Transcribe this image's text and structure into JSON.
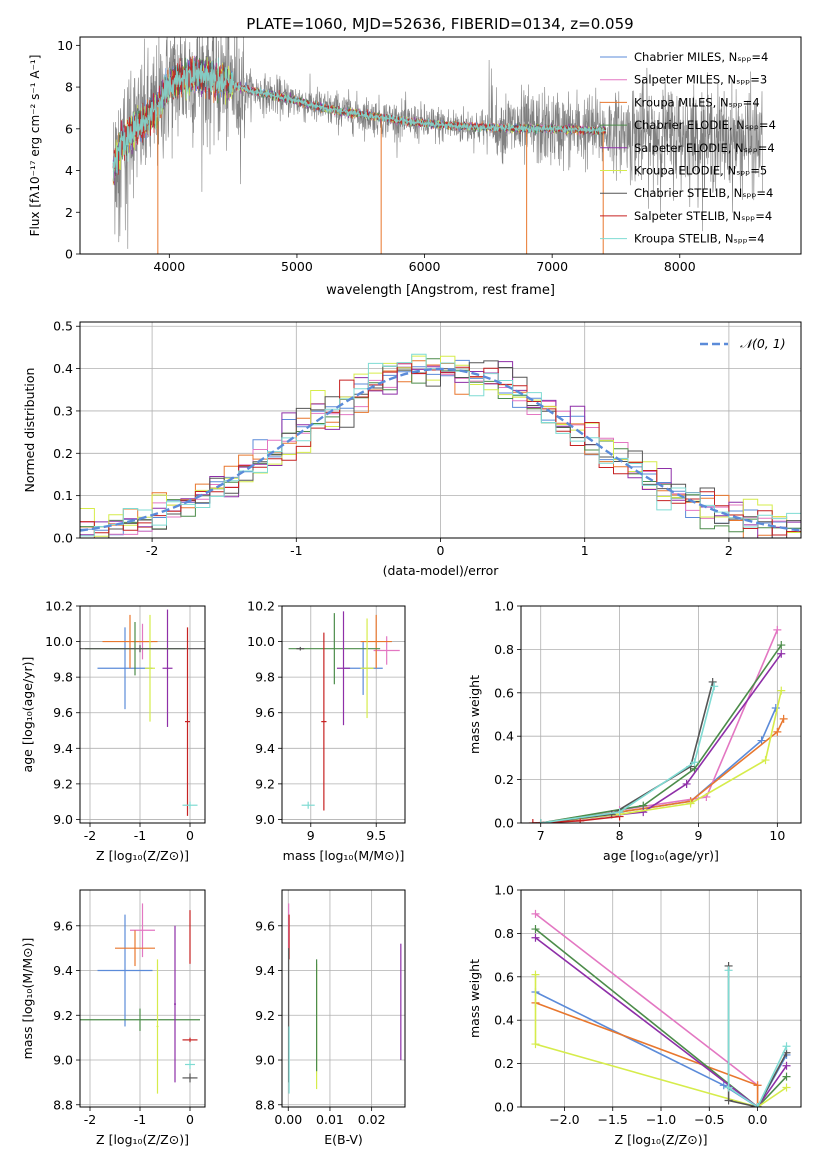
{
  "figure_title": "PLATE=1060, MJD=52636, FIBERID=0134, z=0.059",
  "colors": {
    "chabrier_miles": "#5b8bd9",
    "salpeter_miles": "#e377c2",
    "kroupa_miles": "#e8772e",
    "chabrier_elodie": "#4c8c4a",
    "salpeter_elodie": "#8e2fa8",
    "kroupa_elodie": "#d6ec4b",
    "chabrier_stelib": "#555555",
    "salpeter_stelib": "#c62222",
    "kroupa_stelib": "#7fdbd3",
    "data": "#808080"
  },
  "chart_data": [
    {
      "id": "spectrum",
      "type": "line",
      "title": "PLATE=1060, MJD=52636, FIBERID=0134, z=0.059",
      "xlabel": "wavelength [Angstrom, rest frame]",
      "ylabel": "Flux [fλ10⁻¹⁷ erg cm⁻² s⁻¹ A⁻¹]",
      "xlim": [
        3300,
        8950
      ],
      "ylim": [
        0,
        10.4
      ],
      "xticks": [
        4000,
        5000,
        6000,
        7000,
        8000
      ],
      "yticks": [
        0,
        2,
        4,
        6,
        8,
        10
      ],
      "legend_position": "right",
      "legend": [
        "Chabrier MILES, Nₛₚₚ=4",
        "Salpeter MILES, Nₛₚₚ=3",
        "Kroupa MILES, Nₛₚₚ=4",
        "Chabrier ELODIE, Nₛₚₚ=4",
        "Salpeter ELODIE, Nₛₚₚ=4",
        "Kroupa ELODIE, Nₛₚₚ=5",
        "Chabrier STELIB, Nₛₚₚ=4",
        "Salpeter STELIB, Nₛₚₚ=4",
        "Kroupa STELIB, Nₛₚₚ=4"
      ],
      "continuum": {
        "x": [
          3560,
          3620,
          3700,
          3800,
          3900,
          3950,
          4000,
          4100,
          4200,
          4300,
          4400,
          4500,
          4600,
          4800,
          5000,
          5200,
          5400,
          5600,
          5800,
          6000,
          6200,
          6400,
          6600,
          6800,
          7000,
          7200,
          7400
        ],
        "y": [
          4.0,
          5.2,
          5.9,
          6.3,
          6.9,
          7.6,
          8.2,
          8.4,
          8.6,
          8.5,
          8.3,
          8.1,
          7.9,
          7.6,
          7.35,
          7.0,
          6.8,
          6.6,
          6.4,
          6.25,
          6.15,
          6.1,
          6.05,
          6.0,
          6.0,
          5.95,
          5.9
        ]
      },
      "data_range_x": [
        3560,
        8650
      ],
      "model_range_x": [
        3560,
        7420
      ],
      "model_spikes": [
        {
          "x": 3910,
          "y": 0
        },
        {
          "x": 5660,
          "y": 0
        },
        {
          "x": 6800,
          "y": 0
        },
        {
          "x": 7400,
          "y": 0
        }
      ]
    },
    {
      "id": "residuals",
      "type": "histogram",
      "xlabel": "(data-model)/error",
      "ylabel": "Normed distribution",
      "xlim": [
        -2.5,
        2.5
      ],
      "ylim": [
        0,
        0.51
      ],
      "xticks": [
        -2,
        -1,
        0,
        1,
        2
      ],
      "yticks": [
        0.0,
        0.1,
        0.2,
        0.3,
        0.4,
        0.5
      ],
      "bin_width": 0.1,
      "legend": [
        "𝒩(0, 1)"
      ],
      "legend_position": "top-right",
      "reference": {
        "mean": 0,
        "sigma": 1
      }
    },
    {
      "id": "age-vs-Z",
      "type": "errorbar",
      "xlabel": "Z [log₁₀(Z/Z⊙)]",
      "ylabel": "age  [log₁₀(age/yr)]",
      "xlim": [
        -2.2,
        0.3
      ],
      "ylim": [
        8.98,
        10.2
      ],
      "xticks": [
        -2,
        -1,
        0
      ],
      "yticks": [
        9.0,
        9.2,
        9.4,
        9.6,
        9.8,
        10.0,
        10.2
      ],
      "points": [
        {
          "model": "chabrier_miles",
          "x": -1.3,
          "xerr": 0.55,
          "y": 9.85,
          "yerr": 0.23
        },
        {
          "model": "salpeter_miles",
          "x": -0.95,
          "xerr": 0.2,
          "y": 10.0,
          "yerr": 0.1
        },
        {
          "model": "kroupa_miles",
          "x": -1.2,
          "xerr": 0.55,
          "y": 10.0,
          "yerr": 0.15
        },
        {
          "model": "chabrier_elodie",
          "x": -1.1,
          "xerr": 1.0,
          "y": 9.96,
          "yerr": 0.15
        },
        {
          "model": "salpeter_elodie",
          "x": -0.45,
          "xerr": 0.1,
          "y": 9.85,
          "yerr": 0.33
        },
        {
          "model": "kroupa_elodie",
          "x": -0.8,
          "xerr": 0.1,
          "y": 9.85,
          "yerr": 0.3
        },
        {
          "model": "chabrier_stelib",
          "x": -1.0,
          "xerr": 1.3,
          "y": 9.96,
          "yerr": 0.02
        },
        {
          "model": "salpeter_stelib",
          "x": -0.05,
          "xerr": 0.05,
          "y": 9.55,
          "yerr": 0.53
        },
        {
          "model": "kroupa_stelib",
          "x": 0.0,
          "xerr": 0.15,
          "y": 9.08,
          "yerr": 0.02
        }
      ]
    },
    {
      "id": "age-vs-mass",
      "type": "errorbar",
      "xlabel": "mass [log₁₀(M/M⊙)]",
      "ylabel": "",
      "xlim": [
        8.78,
        9.72
      ],
      "ylim": [
        8.98,
        10.2
      ],
      "xticks": [
        9.0,
        9.5
      ],
      "yticks": [
        9.0,
        9.2,
        9.4,
        9.6,
        9.8,
        10.0,
        10.2
      ],
      "points": [
        {
          "model": "chabrier_miles",
          "x": 9.4,
          "xerr": 0.15,
          "y": 9.85,
          "yerr": 0.15
        },
        {
          "model": "salpeter_miles",
          "x": 9.58,
          "xerr": 0.1,
          "y": 9.95,
          "yerr": 0.08
        },
        {
          "model": "kroupa_miles",
          "x": 9.5,
          "xerr": 0.12,
          "y": 10.0,
          "yerr": 0.15
        },
        {
          "model": "chabrier_elodie",
          "x": 9.18,
          "xerr": 0.35,
          "y": 9.96,
          "yerr": 0.2
        },
        {
          "model": "salpeter_elodie",
          "x": 9.25,
          "xerr": 0.05,
          "y": 9.85,
          "yerr": 0.32
        },
        {
          "model": "kroupa_elodie",
          "x": 9.43,
          "xerr": 0.05,
          "y": 9.85,
          "yerr": 0.28
        },
        {
          "model": "chabrier_stelib",
          "x": 8.92,
          "xerr": 0.03,
          "y": 9.96,
          "yerr": 0.01
        },
        {
          "model": "salpeter_stelib",
          "x": 9.1,
          "xerr": 0.02,
          "y": 9.55,
          "yerr": 0.5
        },
        {
          "model": "kroupa_stelib",
          "x": 8.98,
          "xerr": 0.05,
          "y": 9.08,
          "yerr": 0.02
        }
      ]
    },
    {
      "id": "mass-weight-vs-age",
      "type": "line",
      "xlabel": "age  [log₁₀(age/yr)]",
      "ylabel": "mass weight",
      "xlim": [
        6.75,
        10.3
      ],
      "ylim": [
        0,
        1.0
      ],
      "xticks": [
        7,
        8,
        9,
        10
      ],
      "yticks": [
        0.0,
        0.2,
        0.4,
        0.6,
        0.8,
        1.0
      ],
      "series": [
        {
          "model": "chabrier_miles",
          "x": [
            7.0,
            8.0,
            8.9,
            9.8,
            9.98
          ],
          "y": [
            0.0,
            0.05,
            0.1,
            0.38,
            0.53
          ]
        },
        {
          "model": "salpeter_miles",
          "x": [
            7.0,
            8.0,
            9.1,
            10.0
          ],
          "y": [
            0.0,
            0.06,
            0.12,
            0.89
          ]
        },
        {
          "model": "kroupa_miles",
          "x": [
            7.0,
            8.0,
            8.9,
            10.0,
            10.08
          ],
          "y": [
            0.0,
            0.05,
            0.1,
            0.42,
            0.48
          ]
        },
        {
          "model": "chabrier_elodie",
          "x": [
            7.0,
            8.3,
            8.95,
            10.05
          ],
          "y": [
            0.0,
            0.08,
            0.25,
            0.82
          ]
        },
        {
          "model": "salpeter_elodie",
          "x": [
            7.0,
            8.3,
            8.85,
            10.05
          ],
          "y": [
            0.0,
            0.05,
            0.18,
            0.78
          ]
        },
        {
          "model": "kroupa_elodie",
          "x": [
            7.0,
            8.0,
            8.9,
            9.85,
            10.05
          ],
          "y": [
            0.0,
            0.04,
            0.09,
            0.29,
            0.61
          ]
        },
        {
          "model": "chabrier_stelib",
          "x": [
            7.0,
            7.9,
            8.9,
            9.18
          ],
          "y": [
            0.0,
            0.04,
            0.26,
            0.65
          ]
        },
        {
          "model": "salpeter_stelib",
          "x": [
            6.9,
            7.5,
            8.0
          ],
          "y": [
            0.0,
            0.01,
            0.03
          ]
        },
        {
          "model": "kroupa_stelib",
          "x": [
            7.0,
            8.0,
            8.95,
            9.2
          ],
          "y": [
            0.0,
            0.05,
            0.28,
            0.63
          ]
        }
      ]
    },
    {
      "id": "mass-vs-Z",
      "type": "errorbar",
      "xlabel": "Z [log₁₀(Z/Z⊙)]",
      "ylabel": "mass [log₁₀(M/M⊙)]",
      "xlim": [
        -2.2,
        0.3
      ],
      "ylim": [
        8.79,
        9.76
      ],
      "xticks": [
        -2,
        -1,
        0
      ],
      "yticks": [
        8.8,
        9.0,
        9.2,
        9.4,
        9.6
      ],
      "points": [
        {
          "model": "chabrier_miles",
          "x": -1.3,
          "xerr": 0.55,
          "y": 9.4,
          "yerr": 0.25
        },
        {
          "model": "salpeter_miles",
          "x": -0.95,
          "xerr": 0.25,
          "y": 9.58,
          "yerr": 0.12
        },
        {
          "model": "kroupa_miles",
          "x": -1.1,
          "xerr": 0.4,
          "y": 9.5,
          "yerr": 0.08
        },
        {
          "model": "chabrier_elodie",
          "x": -1.0,
          "xerr": 1.2,
          "y": 9.18,
          "yerr": 0.05
        },
        {
          "model": "salpeter_elodie",
          "x": -0.3,
          "xerr": 0.02,
          "y": 9.25,
          "yerr": 0.35
        },
        {
          "model": "kroupa_elodie",
          "x": -0.65,
          "xerr": 0.02,
          "y": 9.15,
          "yerr": 0.3
        },
        {
          "model": "chabrier_stelib",
          "x": 0.0,
          "xerr": 0.15,
          "y": 8.92,
          "yerr": 0.02
        },
        {
          "model": "salpeter_stelib",
          "x": 0.0,
          "xerr": 0.15,
          "y": 9.09,
          "yerr": 0.01
        },
        {
          "model": "kroupa_stelib",
          "x": 0.0,
          "xerr": 0.1,
          "y": 8.98,
          "yerr": 0.02
        },
        {
          "model": "salpeter_stelib",
          "x": 0.0,
          "xerr": 0.0,
          "y": 9.55,
          "yerr": 0.12
        }
      ]
    },
    {
      "id": "mass-vs-ebv",
      "type": "errorbar",
      "xlabel": "E(B-V)",
      "ylabel": "",
      "xlim": [
        -0.0015,
        0.028
      ],
      "ylim": [
        8.79,
        9.76
      ],
      "xticks": [
        0.0,
        0.01,
        0.02
      ],
      "xtick_labels": [
        "0.00",
        "0.01",
        "0.02"
      ],
      "yticks": [
        8.8,
        9.0,
        9.2,
        9.4,
        9.6
      ],
      "points": [
        {
          "model": "salpeter_miles",
          "x": 0.0001,
          "xerr": 0,
          "y": 9.6,
          "yerr": 0.1
        },
        {
          "model": "salpeter_stelib",
          "x": 0.0002,
          "xerr": 0,
          "y": 9.55,
          "yerr": 0.1
        },
        {
          "model": "chabrier_stelib",
          "x": 0.0001,
          "xerr": 0,
          "y": 9.2,
          "yerr": 0.3
        },
        {
          "model": "kroupa_stelib",
          "x": 0.0002,
          "xerr": 0,
          "y": 9.0,
          "yerr": 0.15
        },
        {
          "model": "kroupa_elodie",
          "x": 0.0068,
          "xerr": 0,
          "y": 9.15,
          "yerr": 0.28
        },
        {
          "model": "chabrier_elodie",
          "x": 0.0068,
          "xerr": 0,
          "y": 9.2,
          "yerr": 0.25
        },
        {
          "model": "salpeter_elodie",
          "x": 0.027,
          "xerr": 0,
          "y": 9.26,
          "yerr": 0.26
        }
      ]
    },
    {
      "id": "mass-weight-vs-Z",
      "type": "line",
      "xlabel": "Z [log₁₀(Z/Z⊙)]",
      "ylabel": "mass weight",
      "xlim": [
        -2.45,
        0.45
      ],
      "ylim": [
        0,
        1.0
      ],
      "xticks": [
        -2.0,
        -1.5,
        -1.0,
        -0.5,
        0.0
      ],
      "xtick_labels": [
        "−2.0",
        "−1.5",
        "−1.0",
        "−0.5",
        "0.0"
      ],
      "yticks": [
        0.0,
        0.2,
        0.4,
        0.6,
        0.8,
        1.0
      ],
      "series": [
        {
          "model": "chabrier_miles",
          "x": [
            -2.3,
            -0.35,
            0.0,
            0.3
          ],
          "y": [
            0.53,
            0.1,
            0.0,
            0.24
          ]
        },
        {
          "model": "salpeter_miles",
          "x": [
            -2.3,
            0.0
          ],
          "y": [
            0.89,
            0.1
          ]
        },
        {
          "model": "kroupa_miles",
          "x": [
            -2.3,
            0.0,
            0.0
          ],
          "y": [
            0.48,
            0.1,
            0.0
          ]
        },
        {
          "model": "chabrier_elodie",
          "x": [
            -2.3,
            0.0,
            0.3
          ],
          "y": [
            0.82,
            0.0,
            0.14
          ]
        },
        {
          "model": "salpeter_elodie",
          "x": [
            -2.3,
            0.0,
            0.3
          ],
          "y": [
            0.78,
            0.0,
            0.19
          ]
        },
        {
          "model": "kroupa_elodie",
          "x": [
            -2.3,
            -2.3,
            0.0,
            0.3
          ],
          "y": [
            0.61,
            0.29,
            0.0,
            0.09
          ]
        },
        {
          "model": "chabrier_stelib",
          "x": [
            -0.3,
            -0.3,
            0.0,
            0.3
          ],
          "y": [
            0.65,
            0.03,
            0.0,
            0.25
          ]
        },
        {
          "model": "salpeter_stelib",
          "x": [
            0.0
          ],
          "y": [
            0.0
          ]
        },
        {
          "model": "kroupa_stelib",
          "x": [
            -0.3,
            -0.3,
            0.0,
            0.3
          ],
          "y": [
            0.63,
            0.09,
            0.0,
            0.28
          ]
        }
      ]
    }
  ]
}
